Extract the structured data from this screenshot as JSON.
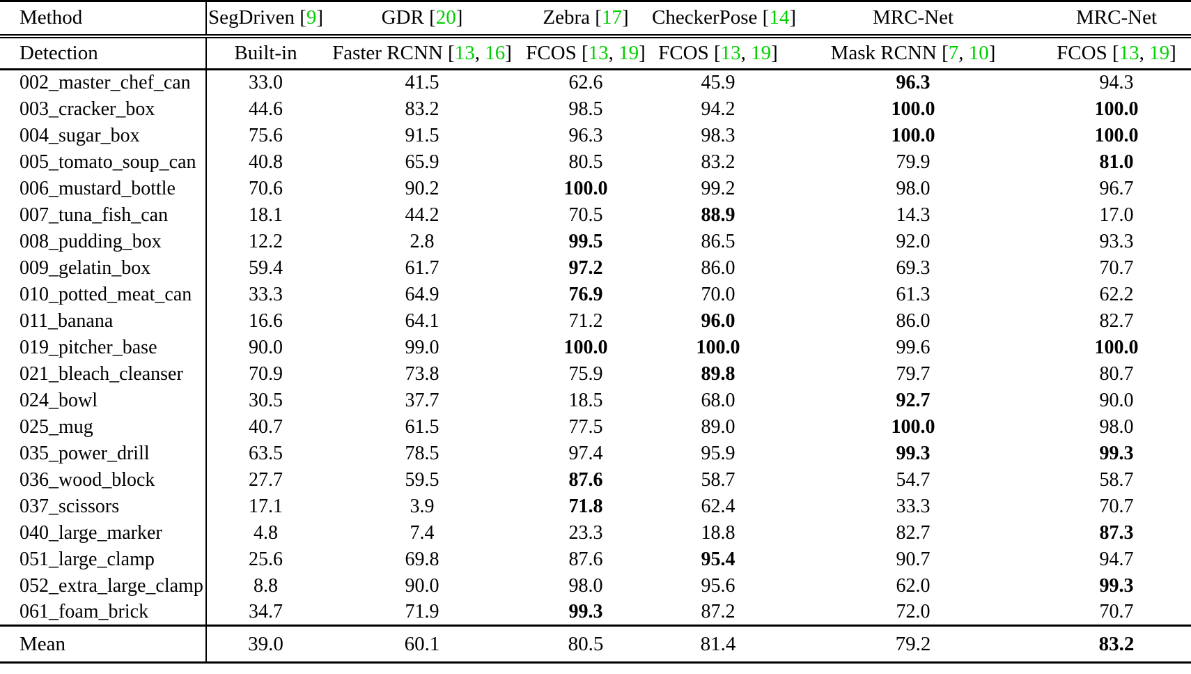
{
  "colors": {
    "citation_green": "#00D000",
    "rule_black": "#000000",
    "page_background": "#ffffff",
    "text_black": "#000000"
  },
  "header": {
    "method_label": "Method",
    "detection_label": "Detection",
    "columns": [
      {
        "method": "SegDriven",
        "method_cites": [
          "9"
        ],
        "detection": "Built-in",
        "detection_cites": []
      },
      {
        "method": "GDR",
        "method_cites": [
          "20"
        ],
        "detection": "Faster RCNN",
        "detection_cites": [
          "13",
          "16"
        ]
      },
      {
        "method": "Zebra",
        "method_cites": [
          "17"
        ],
        "detection": "FCOS",
        "detection_cites": [
          "13",
          "19"
        ]
      },
      {
        "method": "CheckerPose",
        "method_cites": [
          "14"
        ],
        "detection": "FCOS",
        "detection_cites": [
          "13",
          "19"
        ]
      },
      {
        "method": "MRC-Net",
        "method_cites": [],
        "detection": "Mask RCNN",
        "detection_cites": [
          "7",
          "10"
        ]
      },
      {
        "method": "MRC-Net",
        "method_cites": [],
        "detection": "FCOS",
        "detection_cites": [
          "13",
          "19"
        ]
      }
    ]
  },
  "rows": [
    {
      "name": "002_master_chef_can",
      "values": [
        "33.0",
        "41.5",
        "62.6",
        "45.9",
        "96.3",
        "94.3"
      ],
      "bold": [
        false,
        false,
        false,
        false,
        true,
        false
      ]
    },
    {
      "name": "003_cracker_box",
      "values": [
        "44.6",
        "83.2",
        "98.5",
        "94.2",
        "100.0",
        "100.0"
      ],
      "bold": [
        false,
        false,
        false,
        false,
        true,
        true
      ]
    },
    {
      "name": "004_sugar_box",
      "values": [
        "75.6",
        "91.5",
        "96.3",
        "98.3",
        "100.0",
        "100.0"
      ],
      "bold": [
        false,
        false,
        false,
        false,
        true,
        true
      ]
    },
    {
      "name": "005_tomato_soup_can",
      "values": [
        "40.8",
        "65.9",
        "80.5",
        "83.2",
        "79.9",
        "81.0"
      ],
      "bold": [
        false,
        false,
        false,
        false,
        false,
        true
      ]
    },
    {
      "name": "006_mustard_bottle",
      "values": [
        "70.6",
        "90.2",
        "100.0",
        "99.2",
        "98.0",
        "96.7"
      ],
      "bold": [
        false,
        false,
        true,
        false,
        false,
        false
      ]
    },
    {
      "name": "007_tuna_fish_can",
      "values": [
        "18.1",
        "44.2",
        "70.5",
        "88.9",
        "14.3",
        "17.0"
      ],
      "bold": [
        false,
        false,
        false,
        true,
        false,
        false
      ]
    },
    {
      "name": "008_pudding_box",
      "values": [
        "12.2",
        "2.8",
        "99.5",
        "86.5",
        "92.0",
        "93.3"
      ],
      "bold": [
        false,
        false,
        true,
        false,
        false,
        false
      ]
    },
    {
      "name": "009_gelatin_box",
      "values": [
        "59.4",
        "61.7",
        "97.2",
        "86.0",
        "69.3",
        "70.7"
      ],
      "bold": [
        false,
        false,
        true,
        false,
        false,
        false
      ]
    },
    {
      "name": "010_potted_meat_can",
      "values": [
        "33.3",
        "64.9",
        "76.9",
        "70.0",
        "61.3",
        "62.2"
      ],
      "bold": [
        false,
        false,
        true,
        false,
        false,
        false
      ]
    },
    {
      "name": "011_banana",
      "values": [
        "16.6",
        "64.1",
        "71.2",
        "96.0",
        "86.0",
        "82.7"
      ],
      "bold": [
        false,
        false,
        false,
        true,
        false,
        false
      ]
    },
    {
      "name": "019_pitcher_base",
      "values": [
        "90.0",
        "99.0",
        "100.0",
        "100.0",
        "99.6",
        "100.0"
      ],
      "bold": [
        false,
        false,
        true,
        true,
        false,
        true
      ]
    },
    {
      "name": "021_bleach_cleanser",
      "values": [
        "70.9",
        "73.8",
        "75.9",
        "89.8",
        "79.7",
        "80.7"
      ],
      "bold": [
        false,
        false,
        false,
        true,
        false,
        false
      ]
    },
    {
      "name": "024_bowl",
      "values": [
        "30.5",
        "37.7",
        "18.5",
        "68.0",
        "92.7",
        "90.0"
      ],
      "bold": [
        false,
        false,
        false,
        false,
        true,
        false
      ]
    },
    {
      "name": "025_mug",
      "values": [
        "40.7",
        "61.5",
        "77.5",
        "89.0",
        "100.0",
        "98.0"
      ],
      "bold": [
        false,
        false,
        false,
        false,
        true,
        false
      ]
    },
    {
      "name": "035_power_drill",
      "values": [
        "63.5",
        "78.5",
        "97.4",
        "95.9",
        "99.3",
        "99.3"
      ],
      "bold": [
        false,
        false,
        false,
        false,
        true,
        true
      ]
    },
    {
      "name": "036_wood_block",
      "values": [
        "27.7",
        "59.5",
        "87.6",
        "58.7",
        "54.7",
        "58.7"
      ],
      "bold": [
        false,
        false,
        true,
        false,
        false,
        false
      ]
    },
    {
      "name": "037_scissors",
      "values": [
        "17.1",
        "3.9",
        "71.8",
        "62.4",
        "33.3",
        "70.7"
      ],
      "bold": [
        false,
        false,
        true,
        false,
        false,
        false
      ]
    },
    {
      "name": "040_large_marker",
      "values": [
        "4.8",
        "7.4",
        "23.3",
        "18.8",
        "82.7",
        "87.3"
      ],
      "bold": [
        false,
        false,
        false,
        false,
        false,
        true
      ]
    },
    {
      "name": "051_large_clamp",
      "values": [
        "25.6",
        "69.8",
        "87.6",
        "95.4",
        "90.7",
        "94.7"
      ],
      "bold": [
        false,
        false,
        false,
        true,
        false,
        false
      ]
    },
    {
      "name": "052_extra_large_clamp",
      "values": [
        "8.8",
        "90.0",
        "98.0",
        "95.6",
        "62.0",
        "99.3"
      ],
      "bold": [
        false,
        false,
        false,
        false,
        false,
        true
      ]
    },
    {
      "name": "061_foam_brick",
      "values": [
        "34.7",
        "71.9",
        "99.3",
        "87.2",
        "72.0",
        "70.7"
      ],
      "bold": [
        false,
        false,
        true,
        false,
        false,
        false
      ]
    }
  ],
  "mean": {
    "label": "Mean",
    "values": [
      "39.0",
      "60.1",
      "80.5",
      "81.4",
      "79.2",
      "83.2"
    ],
    "bold": [
      false,
      false,
      false,
      false,
      false,
      true
    ]
  }
}
